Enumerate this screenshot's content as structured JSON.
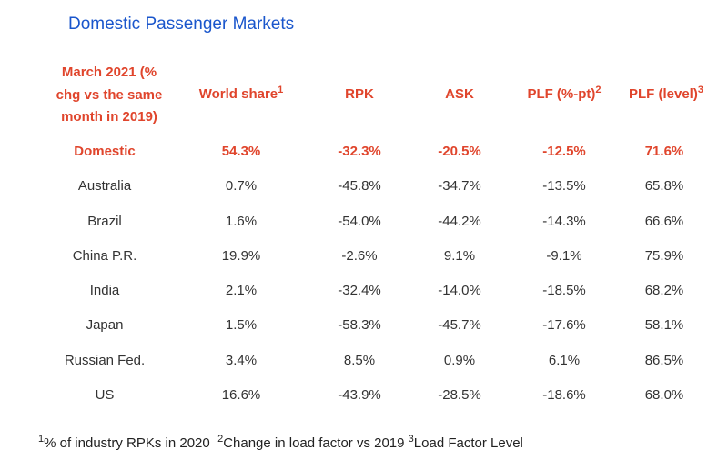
{
  "title": "Domestic Passenger Markets",
  "headers": {
    "first_line1": "March 2021 (%",
    "first_line2": "chg vs the same",
    "first_line3": "month in 2019)",
    "world_share": "World share",
    "world_share_sup": "1",
    "rpk": "RPK",
    "ask": "ASK",
    "plf_pt": "PLF (%-pt)",
    "plf_pt_sup": "2",
    "plf_level": "PLF (level)",
    "plf_level_sup": "3"
  },
  "rows": [
    {
      "market": "Domestic",
      "world_share": "54.3%",
      "rpk": "-32.3%",
      "ask": "-20.5%",
      "plf_pt": "-12.5%",
      "plf_level": "71.6%"
    },
    {
      "market": "Australia",
      "world_share": "0.7%",
      "rpk": "-45.8%",
      "ask": "-34.7%",
      "plf_pt": "-13.5%",
      "plf_level": "65.8%"
    },
    {
      "market": "Brazil",
      "world_share": "1.6%",
      "rpk": "-54.0%",
      "ask": "-44.2%",
      "plf_pt": "-14.3%",
      "plf_level": "66.6%"
    },
    {
      "market": "China P.R.",
      "world_share": "19.9%",
      "rpk": "-2.6%",
      "ask": "9.1%",
      "plf_pt": "-9.1%",
      "plf_level": "75.9%"
    },
    {
      "market": "India",
      "world_share": "2.1%",
      "rpk": "-32.4%",
      "ask": "-14.0%",
      "plf_pt": "-18.5%",
      "plf_level": "68.2%"
    },
    {
      "market": "Japan",
      "world_share": "1.5%",
      "rpk": "-58.3%",
      "ask": "-45.7%",
      "plf_pt": "-17.6%",
      "plf_level": "58.1%"
    },
    {
      "market": "Russian Fed.",
      "world_share": "3.4%",
      "rpk": "8.5%",
      "ask": "0.9%",
      "plf_pt": "6.1%",
      "plf_level": "86.5%"
    },
    {
      "market": "US",
      "world_share": "16.6%",
      "rpk": "-43.9%",
      "ask": "-28.5%",
      "plf_pt": "-18.6%",
      "plf_level": "68.0%"
    }
  ],
  "footnote": {
    "sup1": "1",
    "text1": "% of industry RPKs in 2020",
    "sup2": "2",
    "text2": "Change in load factor vs 2019",
    "sup3": "3",
    "text3": "Load Factor Level"
  },
  "colors": {
    "title": "#1a56cc",
    "accent": "#e0452c",
    "text": "#333333"
  }
}
